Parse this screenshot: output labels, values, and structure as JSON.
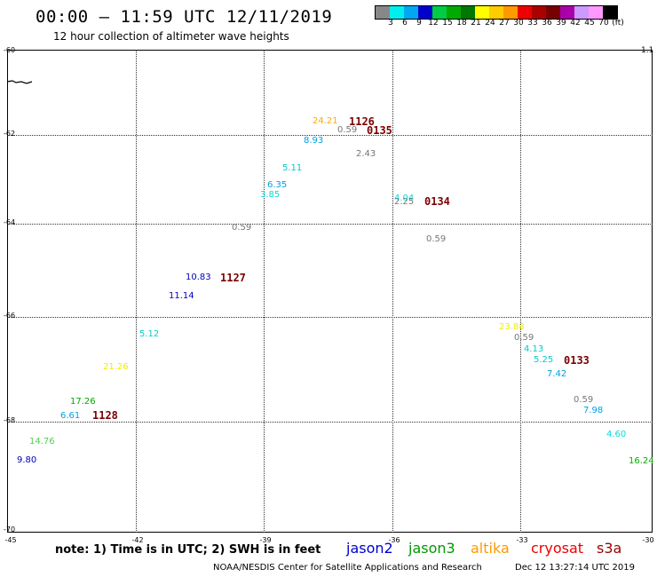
{
  "header": {
    "title": "00:00 — 11:59 UTC 12/11/2019",
    "subtitle": "12 hour collection of altimeter wave heights"
  },
  "legend": {
    "colors": [
      "#888888",
      "#00eeee",
      "#00a8f0",
      "#0000cc",
      "#00cc44",
      "#00aa00",
      "#007700",
      "#ffff00",
      "#ffcc00",
      "#ff9900",
      "#ee0000",
      "#aa0000",
      "#770000",
      "#aa00aa",
      "#cc99ff",
      "#ff99ff",
      "#000000"
    ],
    "labels": [
      "3",
      "6",
      "9",
      "12",
      "15",
      "18",
      "21",
      "24",
      "27",
      "30",
      "33",
      "36",
      "39",
      "42",
      "45",
      "70",
      "(ft)"
    ]
  },
  "axes": {
    "lat_labels": [
      "-60",
      "-62",
      "-64",
      "-66",
      "-68",
      "-70"
    ],
    "lon_labels": [
      "-45",
      "-42",
      "-39",
      "-36",
      "-33",
      "-30"
    ],
    "corner_value": "1.1"
  },
  "map_data": {
    "points": [
      {
        "v": "24.21",
        "c": "#ffaa00"
      },
      {
        "v": "0.59",
        "c": "#777777"
      },
      {
        "v": "8.93",
        "c": "#00a0e0"
      },
      {
        "v": "2.43",
        "c": "#777777"
      },
      {
        "v": "5.11",
        "c": "#00cccc"
      },
      {
        "v": "6.35",
        "c": "#00a0e0"
      },
      {
        "v": "3.85",
        "c": "#00dddd"
      },
      {
        "v": "4.04",
        "c": "#00dddd"
      },
      {
        "v": "2.25",
        "c": "#777777"
      },
      {
        "v": "0.59",
        "c": "#777777"
      },
      {
        "v": "0.59",
        "c": "#777777"
      },
      {
        "v": "10.83",
        "c": "#0000bb"
      },
      {
        "v": "11.14",
        "c": "#0000bb"
      },
      {
        "v": "5.12",
        "c": "#00cccc"
      },
      {
        "v": "21.26",
        "c": "#eeee00"
      },
      {
        "v": "17.26",
        "c": "#00aa00"
      },
      {
        "v": "6.61",
        "c": "#00a0e0"
      },
      {
        "v": "14.76",
        "c": "#55cc55"
      },
      {
        "v": "9.80",
        "c": "#0000bb"
      },
      {
        "v": "23.88",
        "c": "#eeee00"
      },
      {
        "v": "0.59",
        "c": "#777777"
      },
      {
        "v": "4.13",
        "c": "#00cccc"
      },
      {
        "v": "5.25",
        "c": "#00cccc"
      },
      {
        "v": "7.42",
        "c": "#00a0e0"
      },
      {
        "v": "0.59",
        "c": "#777777"
      },
      {
        "v": "7.98",
        "c": "#00a0e0"
      },
      {
        "v": "4.60",
        "c": "#00dddd"
      },
      {
        "v": "16.24",
        "c": "#00aa00"
      }
    ],
    "revisions": [
      "1126",
      "0135",
      "0134",
      "1127",
      "1128",
      "0133"
    ]
  },
  "footer": {
    "note": "note:  1) Time is in UTC;  2) SWH is in feet",
    "satellites": [
      {
        "name": "jason2",
        "color": "#0000cc"
      },
      {
        "name": "jason3",
        "color": "#009900"
      },
      {
        "name": "altika",
        "color": "#ff9900"
      },
      {
        "name": "cryosat",
        "color": "#ee0000"
      },
      {
        "name": "s3a",
        "color": "#990000"
      }
    ],
    "credit": "NOAA/NESDIS Center for Satellite Applications and Research",
    "timestamp": "Dec 12 13:27:14 UTC 2019"
  }
}
